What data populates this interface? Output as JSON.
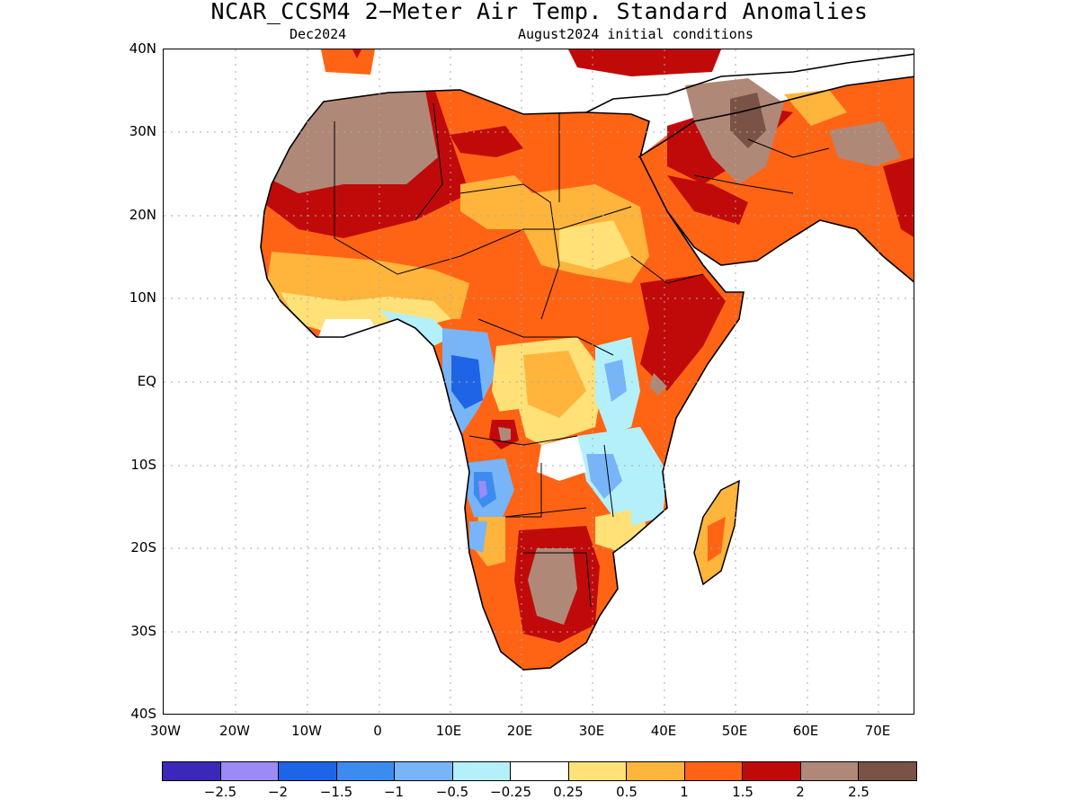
{
  "title": "NCAR_CCSM4 2−Meter Air Temp. Standard Anomalies",
  "subtitle_left": "Dec2024",
  "subtitle_right": "August2024 initial conditions",
  "lat_labels": [
    "40N",
    "30N",
    "20N",
    "10N",
    "EQ",
    "10S",
    "20S",
    "30S",
    "40S"
  ],
  "lon_labels": [
    "30W",
    "20W",
    "10W",
    "0",
    "10E",
    "20E",
    "30E",
    "40E",
    "50E",
    "60E",
    "70E"
  ],
  "colorbar": {
    "colors": [
      "#3b28b8",
      "#9b8bf5",
      "#1e64e6",
      "#3c8cf0",
      "#78b4f8",
      "#b4f0fa",
      "#ffffff",
      "#ffe178",
      "#ffb43c",
      "#ff6414",
      "#c00a0a",
      "#b08878",
      "#7a5246"
    ],
    "labels": [
      "−2.5",
      "−2",
      "−1.5",
      "−1",
      "−0.5",
      "−0.25",
      "0.25",
      "0.5",
      "1",
      "1.5",
      "2",
      "2.5"
    ]
  }
}
